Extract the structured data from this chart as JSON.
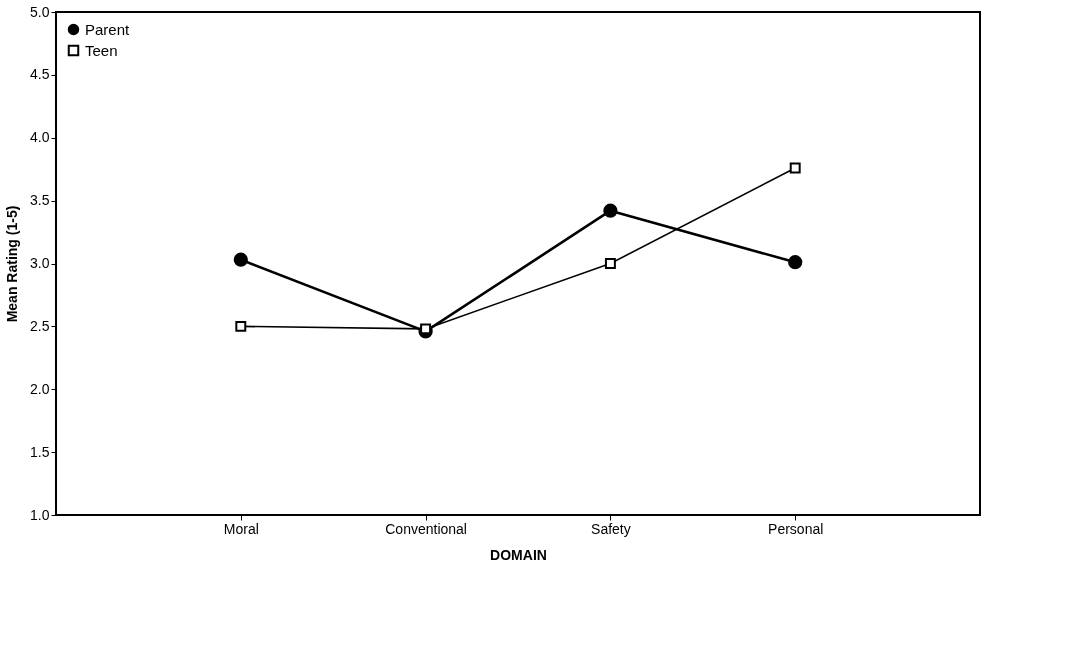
{
  "chart_data": {
    "type": "line",
    "xlabel": "DOMAIN",
    "ylabel": "Mean Rating (1-5)",
    "categories": [
      "Moral",
      "Conventional",
      "Safety",
      "Personal"
    ],
    "series": [
      {
        "name": "Parent",
        "color": "#000000",
        "marker": "circle",
        "values": [
          3.03,
          2.46,
          3.42,
          3.01
        ]
      },
      {
        "name": "Teen",
        "color": "#000000",
        "marker": "square",
        "values": [
          2.5,
          2.48,
          3.0,
          3.76
        ]
      }
    ],
    "ylim": [
      1.0,
      5.0
    ],
    "yticks": [
      {
        "value": 1.0,
        "label": "1.0"
      },
      {
        "value": 1.5,
        "label": "1.5"
      },
      {
        "value": 2.0,
        "label": "2.0"
      },
      {
        "value": 2.5,
        "label": "2.5"
      },
      {
        "value": 3.0,
        "label": "3.0"
      },
      {
        "value": 3.5,
        "label": "3.5"
      },
      {
        "value": 4.0,
        "label": "4.0"
      },
      {
        "value": 4.5,
        "label": "4.5"
      },
      {
        "value": 5.0,
        "label": "5.0"
      }
    ],
    "grid": false,
    "legend": "top left",
    "line_style": "solid"
  }
}
